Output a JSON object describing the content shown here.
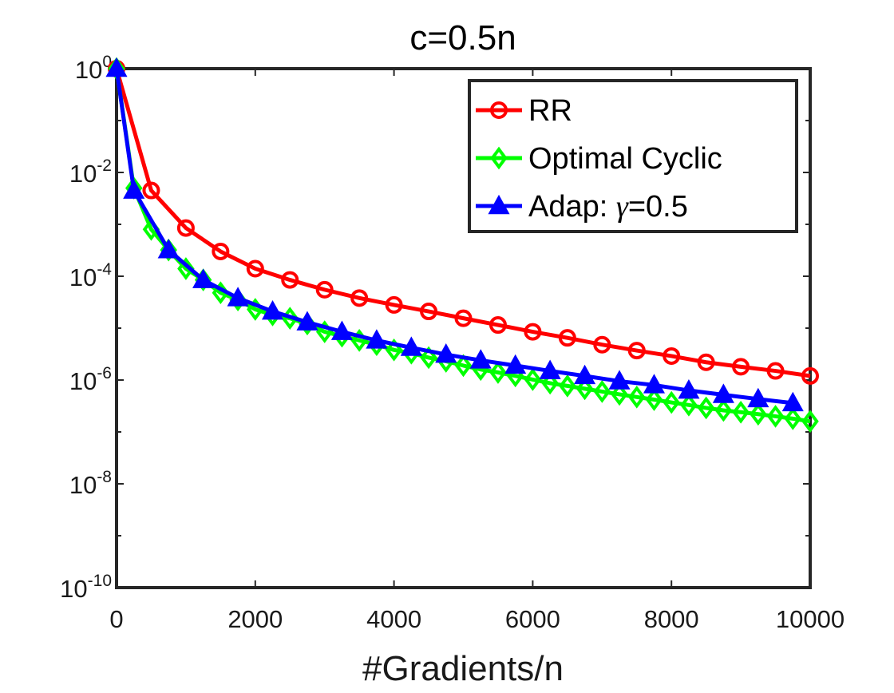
{
  "chart_data": {
    "type": "line",
    "title": "c=0.5n",
    "xlabel": "#Gradients/n",
    "ylabel": "",
    "y_scale": "log",
    "xlim": [
      0,
      10000
    ],
    "ylim_exponents": [
      -10,
      0
    ],
    "x_ticks": [
      0,
      2000,
      4000,
      6000,
      8000,
      10000
    ],
    "x_tick_labels": [
      "0",
      "2000",
      "4000",
      "6000",
      "8000",
      "10000"
    ],
    "y_ticks": [
      {
        "base": "10",
        "exp": "0",
        "value": 1
      },
      {
        "base": "10",
        "exp": "-2",
        "value": 0.01
      },
      {
        "base": "10",
        "exp": "-4",
        "value": 0.0001
      },
      {
        "base": "10",
        "exp": "-6",
        "value": 1e-06
      },
      {
        "base": "10",
        "exp": "-8",
        "value": 1e-08
      },
      {
        "base": "10",
        "exp": "-10",
        "value": 1e-10
      }
    ],
    "legend_position": "top-right",
    "series": [
      {
        "name": "RR",
        "legend_label": "RR",
        "color": "#ff0000",
        "marker": "circle",
        "x": [
          0,
          500,
          1000,
          1500,
          2000,
          2500,
          3000,
          3500,
          4000,
          4500,
          5000,
          5500,
          6000,
          6500,
          7000,
          7500,
          8000,
          8500,
          9000,
          9500,
          10000
        ],
        "y": [
          1.0,
          0.0045,
          0.00085,
          0.0003,
          0.00014,
          8.5e-05,
          5.5e-05,
          3.8e-05,
          2.8e-05,
          2.1e-05,
          1.55e-05,
          1.15e-05,
          8.5e-06,
          6.5e-06,
          4.8e-06,
          3.7e-06,
          2.9e-06,
          2.2e-06,
          1.8e-06,
          1.5e-06,
          1.2e-06
        ]
      },
      {
        "name": "Optimal Cyclic",
        "legend_label": "Optimal Cyclic",
        "color": "#00ff00",
        "marker": "diamond",
        "x": [
          0,
          250,
          500,
          750,
          1000,
          1250,
          1500,
          1750,
          2000,
          2250,
          2500,
          2750,
          3000,
          3250,
          3500,
          3750,
          4000,
          4250,
          4500,
          4750,
          5000,
          5250,
          5500,
          5750,
          6000,
          6250,
          6500,
          6750,
          7000,
          7250,
          7500,
          7750,
          8000,
          8250,
          8500,
          8750,
          9000,
          9250,
          9500,
          9750,
          10000
        ],
        "y": [
          1.0,
          0.005,
          0.0008,
          0.00032,
          0.00014,
          8.5e-05,
          4.8e-05,
          3.5e-05,
          2.3e-05,
          1.8e-05,
          1.55e-05,
          1.2e-05,
          8.5e-06,
          7e-06,
          5.8e-06,
          4.8e-06,
          3.8e-06,
          3.3e-06,
          2.7e-06,
          2.3e-06,
          1.9e-06,
          1.6e-06,
          1.4e-06,
          1.2e-06,
          1.02e-06,
          8.7e-07,
          7.7e-07,
          6.8e-07,
          6e-07,
          5.3e-07,
          4.7e-07,
          4.2e-07,
          3.7e-07,
          3.3e-07,
          2.9e-07,
          2.6e-07,
          2.4e-07,
          2.2e-07,
          2e-07,
          1.8e-07,
          1.6e-07
        ]
      },
      {
        "name": "Adap: γ=0.5",
        "legend_label_prefix": "Adap: ",
        "legend_label_symbol": "γ",
        "legend_label_suffix": "=0.5",
        "color": "#0000ff",
        "marker": "triangle",
        "x": [
          0,
          250,
          750,
          1250,
          1750,
          2250,
          2750,
          3250,
          3750,
          4250,
          4750,
          5250,
          5750,
          6250,
          6750,
          7250,
          7750,
          8250,
          8750,
          9250,
          9750
        ],
        "y": [
          1.0,
          0.0045,
          0.00032,
          8.5e-05,
          3.8e-05,
          2.1e-05,
          1.3e-05,
          8.5e-06,
          5.8e-06,
          4.2e-06,
          3.1e-06,
          2.4e-06,
          1.9e-06,
          1.5e-06,
          1.2e-06,
          9.5e-07,
          8e-07,
          6.3e-07,
          5.2e-07,
          4.3e-07,
          3.6e-07
        ]
      }
    ]
  }
}
